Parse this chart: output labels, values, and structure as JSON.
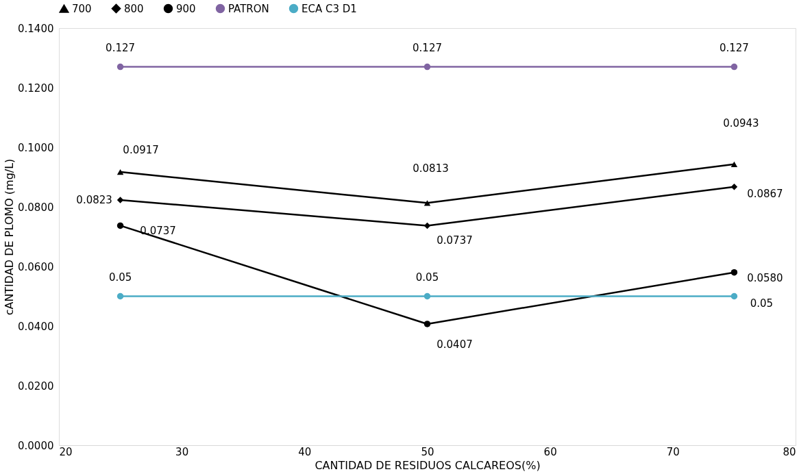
{
  "chart_data": {
    "type": "line",
    "xlabel": "CANTIDAD DE RESIDUOS CALCAREOS(%)",
    "ylabel": "cANTIDAD DE PLOMO (mg/L)",
    "x": [
      25,
      50,
      75
    ],
    "series": [
      {
        "name": "700",
        "color": "#000000",
        "marker": "triangle",
        "values": [
          0.0917,
          0.0813,
          0.0943
        ],
        "value_labels": [
          "0.0917",
          "0.0813",
          "0.0943"
        ]
      },
      {
        "name": "800",
        "color": "#000000",
        "marker": "diamond",
        "values": [
          0.0823,
          0.0737,
          0.0867
        ],
        "value_labels": [
          "0.0823",
          "0.0737",
          "0.0867"
        ]
      },
      {
        "name": "900",
        "color": "#000000",
        "marker": "circle",
        "values": [
          0.0737,
          0.0407,
          0.058
        ],
        "value_labels": [
          "0.0737",
          "0.0407",
          "0.0580"
        ]
      },
      {
        "name": "PATRON",
        "color": "#8064a2",
        "marker": "circle",
        "values": [
          0.127,
          0.127,
          0.127
        ],
        "value_labels": [
          "0.127",
          "0.127",
          "0.127"
        ]
      },
      {
        "name": "ECA C3 D1",
        "color": "#4bacc6",
        "marker": "circle",
        "values": [
          0.05,
          0.05,
          0.05
        ],
        "value_labels": [
          "0.05",
          "0.05",
          "0.05"
        ]
      }
    ],
    "xlim": [
      20,
      80
    ],
    "xticks": [
      20,
      30,
      40,
      50,
      60,
      70,
      80
    ],
    "ylim": [
      0,
      0.14
    ],
    "yticks": [
      {
        "value": 0,
        "label": "0.0000"
      },
      {
        "value": 0.02,
        "label": "0.0200"
      },
      {
        "value": 0.04,
        "label": "0.0400"
      },
      {
        "value": 0.06,
        "label": "0.0600"
      },
      {
        "value": 0.08,
        "label": "0.0800"
      },
      {
        "value": 0.1,
        "label": "0.1000"
      },
      {
        "value": 0.12,
        "label": "0.1200"
      },
      {
        "value": 0.14,
        "label": "0.1400"
      }
    ],
    "grid": false,
    "legend": "top",
    "line_style": "solid"
  }
}
